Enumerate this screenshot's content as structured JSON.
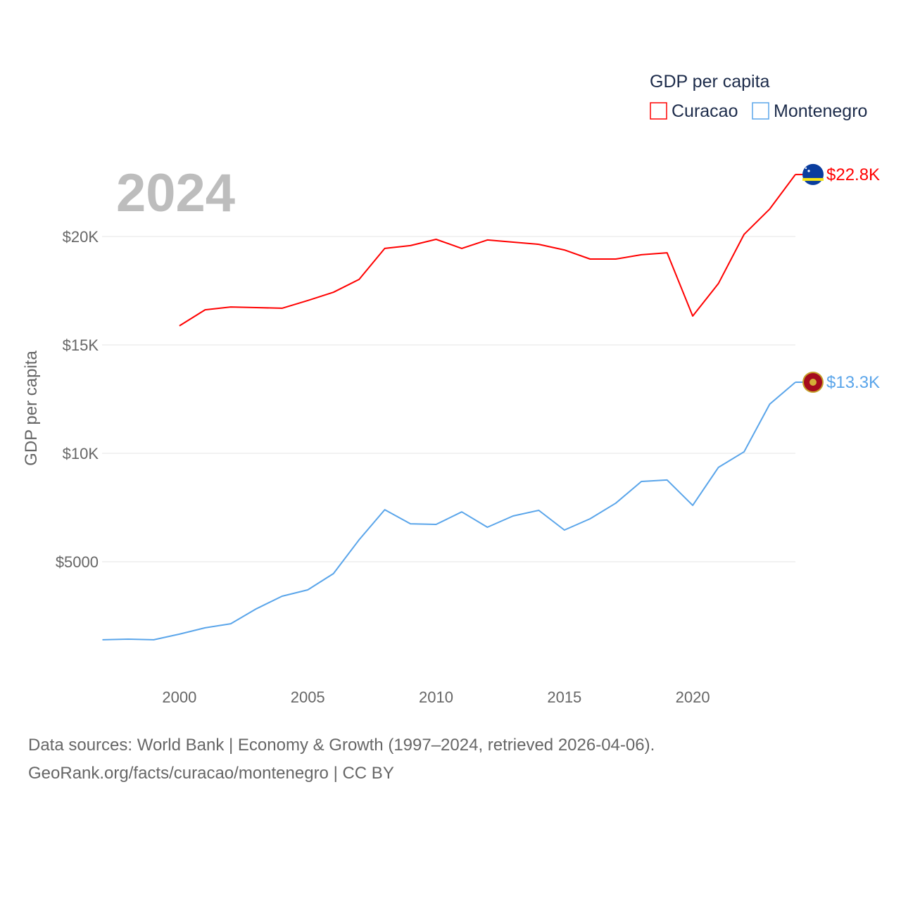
{
  "chart_data": {
    "type": "line",
    "title": "",
    "year_label": "2024",
    "ylabel": "GDP per capita",
    "xlabel": "",
    "x": [
      1997,
      1998,
      1999,
      2000,
      2001,
      2002,
      2003,
      2004,
      2005,
      2006,
      2007,
      2008,
      2009,
      2010,
      2011,
      2012,
      2013,
      2014,
      2015,
      2016,
      2017,
      2018,
      2019,
      2020,
      2021,
      2022,
      2023,
      2024
    ],
    "xlim": [
      1997,
      2024
    ],
    "ylim": [
      0,
      23000
    ],
    "x_ticks": [
      2000,
      2005,
      2010,
      2015,
      2020
    ],
    "x_tick_labels": [
      "2000",
      "2005",
      "2010",
      "2015",
      "2020"
    ],
    "y_ticks": [
      5000,
      10000,
      15000,
      20000
    ],
    "y_tick_labels": [
      "$5000",
      "$10K",
      "$15K",
      "$20K"
    ],
    "grid": true,
    "legend": {
      "title": "GDP per capita",
      "placement": "top-right"
    },
    "series": [
      {
        "name": "Curacao",
        "color": "#ff0000",
        "end_label": "$22.8K",
        "flag": "curacao-flag",
        "values": [
          null,
          null,
          null,
          15880,
          16620,
          16750,
          16720,
          16690,
          17050,
          17430,
          18020,
          19450,
          19580,
          19870,
          19450,
          19840,
          19740,
          19640,
          19380,
          18960,
          18960,
          19160,
          19250,
          16330,
          17830,
          20100,
          21270,
          22860
        ]
      },
      {
        "name": "Montenegro",
        "color": "#5aa5ea",
        "end_label": "$13.3K",
        "flag": "montenegro-flag",
        "values": [
          1400,
          1430,
          1400,
          1660,
          1950,
          2140,
          2830,
          3410,
          3700,
          4450,
          6010,
          7400,
          6750,
          6720,
          7300,
          6590,
          7110,
          7370,
          6460,
          6980,
          7700,
          8700,
          8770,
          7600,
          9350,
          10070,
          12270,
          13280
        ]
      }
    ]
  },
  "footer": {
    "line1": "Data sources: World Bank | Economy & Growth (1997–2024, retrieved 2026-04-06).",
    "line2": "GeoRank.org/facts/curacao/montenegro | CC BY"
  }
}
